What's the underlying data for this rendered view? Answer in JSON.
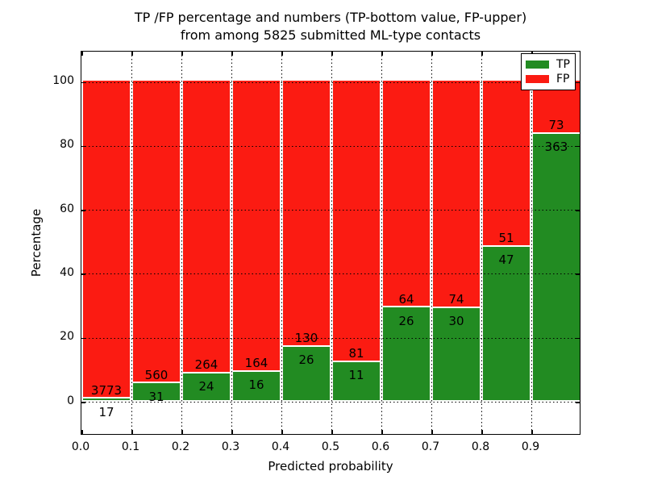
{
  "figure": {
    "title_line1": "TP /FP percentage and numbers (TP-bottom value, FP-upper)",
    "title_line2": "from among 5825 submitted ML-type contacts"
  },
  "axes": {
    "xlabel": "Predicted probability",
    "ylabel": "Percentage",
    "xtick_labels": [
      "0.0",
      "0.1",
      "0.2",
      "0.3",
      "0.4",
      "0.5",
      "0.6",
      "0.7",
      "0.8",
      "0.9"
    ],
    "ytick_labels": [
      "0",
      "20",
      "40",
      "60",
      "80",
      "100"
    ],
    "ytick_values": [
      0,
      20,
      40,
      60,
      80,
      100
    ]
  },
  "legend": {
    "items": [
      {
        "label": "TP",
        "color": "#228b22"
      },
      {
        "label": "FP",
        "color": "#fb1b12"
      }
    ]
  },
  "chart_data": {
    "type": "bar",
    "stacked": true,
    "percent_normalized": true,
    "title": "TP /FP percentage and numbers (TP-bottom value, FP-upper) from among 5825 submitted ML-type contacts",
    "xlabel": "Predicted probability",
    "ylabel": "Percentage",
    "total_contacts": 5825,
    "bin_edges": [
      0.0,
      0.1,
      0.2,
      0.3,
      0.4,
      0.5,
      0.6,
      0.7,
      0.8,
      0.9,
      1.0
    ],
    "categories": [
      "0.0-0.1",
      "0.1-0.2",
      "0.2-0.3",
      "0.3-0.4",
      "0.4-0.5",
      "0.5-0.6",
      "0.6-0.7",
      "0.7-0.8",
      "0.8-0.9",
      "0.9-1.0"
    ],
    "series": [
      {
        "name": "TP",
        "color": "#228b22",
        "position": "bottom",
        "counts": [
          17,
          31,
          24,
          16,
          26,
          11,
          26,
          30,
          47,
          363
        ]
      },
      {
        "name": "FP",
        "color": "#fb1b12",
        "position": "top",
        "counts": [
          3773,
          560,
          264,
          164,
          130,
          81,
          64,
          74,
          51,
          73
        ]
      }
    ],
    "tp_percent": [
      0.45,
      5.25,
      8.33,
      8.89,
      16.67,
      11.96,
      28.89,
      28.85,
      47.96,
      83.26
    ],
    "ylim": [
      -10.6,
      109.5
    ],
    "xlim": [
      0.0,
      1.0
    ],
    "grid": "dotted black, drawn above bars",
    "legend_position": "upper right"
  }
}
